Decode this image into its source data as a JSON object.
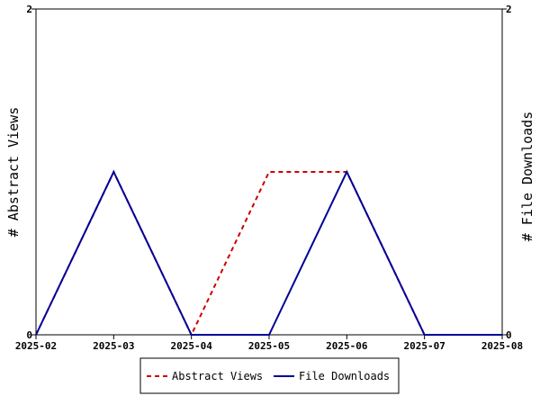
{
  "chart_data": {
    "type": "line",
    "x": [
      "2025-02",
      "2025-03",
      "2025-04",
      "2025-05",
      "2025-06",
      "2025-07",
      "2025-08"
    ],
    "series": [
      {
        "name": "Abstract Views",
        "values": [
          0,
          1,
          0,
          1,
          1,
          0,
          0
        ],
        "color": "#cc0000",
        "dash": "dashed",
        "axis": "left"
      },
      {
        "name": "File Downloads",
        "values": [
          0,
          1,
          0,
          0,
          1,
          0,
          0
        ],
        "color": "#000099",
        "dash": "solid",
        "axis": "right"
      }
    ],
    "ylabel_left": "# Abstract Views",
    "ylabel_right": "# File Downloads",
    "ylim_left": [
      0,
      2
    ],
    "ylim_right": [
      0,
      2
    ],
    "yticks_left": [
      "0",
      "2"
    ],
    "yticks_right": [
      "0",
      "2"
    ],
    "grid": false,
    "legend_position": "bottom-center"
  }
}
